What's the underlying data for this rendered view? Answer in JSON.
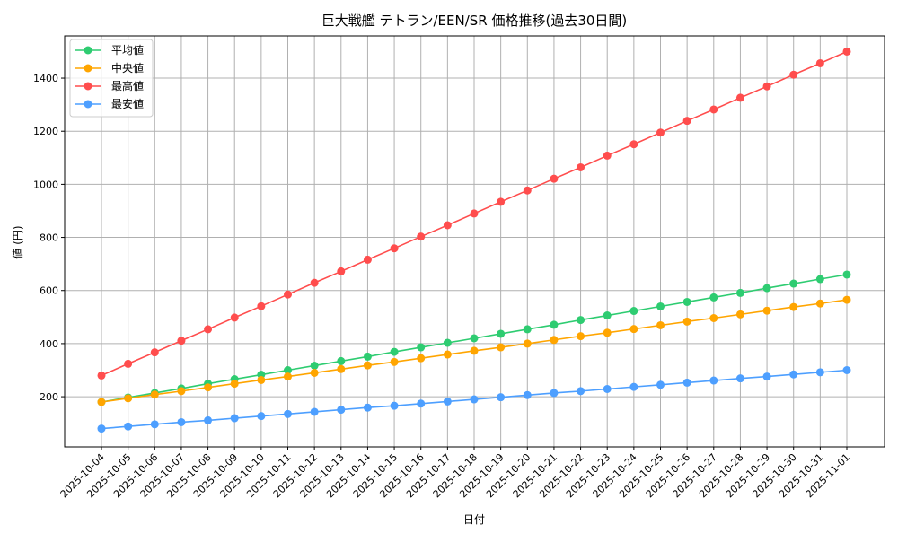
{
  "chart_data": {
    "type": "line",
    "title": "巨大戦艦 テトラン/EEN/SR 価格推移(過去30日間)",
    "xlabel": "日付",
    "ylabel": "値 (円)",
    "ylim": [
      11,
      1559
    ],
    "yticks": [
      200,
      400,
      600,
      800,
      1000,
      1200,
      1400
    ],
    "grid": true,
    "legend_position": "top-left",
    "x": [
      "2025-10-04",
      "2025-10-05",
      "2025-10-06",
      "2025-10-07",
      "2025-10-08",
      "2025-10-09",
      "2025-10-10",
      "2025-10-11",
      "2025-10-12",
      "2025-10-13",
      "2025-10-14",
      "2025-10-15",
      "2025-10-16",
      "2025-10-17",
      "2025-10-18",
      "2025-10-19",
      "2025-10-20",
      "2025-10-21",
      "2025-10-22",
      "2025-10-23",
      "2025-10-24",
      "2025-10-25",
      "2025-10-26",
      "2025-10-27",
      "2025-10-28",
      "2025-10-29",
      "2025-10-30",
      "2025-10-31",
      "2025-11-01"
    ],
    "series": [
      {
        "name": "平均値",
        "color": "#2ecc71",
        "values": [
          180,
          197,
          214,
          231,
          249,
          266,
          283,
          300,
          317,
          334,
          351,
          369,
          386,
          403,
          420,
          437,
          454,
          471,
          489,
          506,
          523,
          540,
          557,
          574,
          591,
          609,
          626,
          643,
          660
        ]
      },
      {
        "name": "中央値",
        "color": "#ffa500",
        "values": [
          180,
          194,
          208,
          221,
          235,
          249,
          263,
          276,
          290,
          304,
          318,
          331,
          345,
          359,
          373,
          386,
          400,
          414,
          428,
          441,
          455,
          469,
          483,
          496,
          510,
          524,
          538,
          551,
          565
        ]
      },
      {
        "name": "最高値",
        "color": "#ff4d4d",
        "values": [
          280,
          324,
          367,
          411,
          454,
          498,
          541,
          585,
          629,
          672,
          716,
          759,
          803,
          846,
          890,
          934,
          977,
          1021,
          1064,
          1108,
          1151,
          1195,
          1239,
          1282,
          1326,
          1369,
          1413,
          1456,
          1500
        ]
      },
      {
        "name": "最安値",
        "color": "#4d9fff",
        "values": [
          80,
          88,
          96,
          104,
          111,
          119,
          127,
          135,
          143,
          151,
          159,
          166,
          174,
          182,
          190,
          198,
          206,
          214,
          221,
          229,
          237,
          245,
          253,
          261,
          269,
          276,
          284,
          292,
          300
        ]
      }
    ]
  }
}
